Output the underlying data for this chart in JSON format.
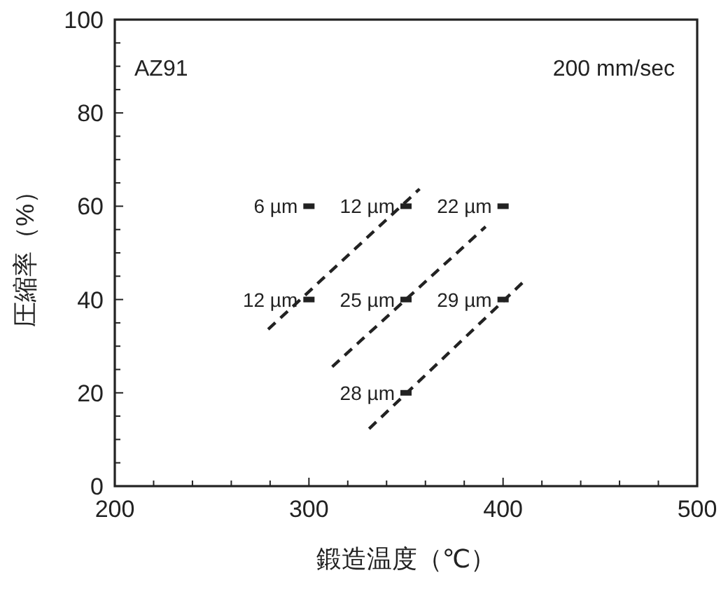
{
  "chart_data": {
    "type": "scatter",
    "xlabel": "鍛造温度（℃）",
    "ylabel": "圧縮率（%）",
    "xlim": [
      200,
      500
    ],
    "ylim": [
      0,
      100
    ],
    "xticks": [
      200,
      {
        "value": 220,
        "label": null
      },
      {
        "value": 240,
        "label": null
      },
      {
        "value": 260,
        "label": null
      },
      {
        "value": 280,
        "label": null
      },
      300,
      {
        "value": 320,
        "label": null
      },
      {
        "value": 340,
        "label": null
      },
      {
        "value": 360,
        "label": null
      },
      {
        "value": 380,
        "label": null
      },
      400,
      {
        "value": 420,
        "label": null
      },
      {
        "value": 440,
        "label": null
      },
      {
        "value": 460,
        "label": null
      },
      {
        "value": 480,
        "label": null
      },
      500
    ],
    "yticks": [
      0,
      {
        "value": 5,
        "label": null
      },
      {
        "value": 10,
        "label": null
      },
      {
        "value": 15,
        "label": null
      },
      20,
      {
        "value": 25,
        "label": null
      },
      {
        "value": 30,
        "label": null
      },
      {
        "value": 35,
        "label": null
      },
      40,
      {
        "value": 45,
        "label": null
      },
      {
        "value": 50,
        "label": null
      },
      {
        "value": 55,
        "label": null
      },
      60,
      {
        "value": 65,
        "label": null
      },
      {
        "value": 70,
        "label": null
      },
      {
        "value": 75,
        "label": null
      },
      80,
      {
        "value": 85,
        "label": null
      },
      {
        "value": 90,
        "label": null
      },
      {
        "value": 95,
        "label": null
      },
      100
    ],
    "grid": false,
    "series": [
      {
        "type": "line",
        "line_style": "dashed",
        "color": "#222222",
        "x": [
          279,
          357
        ],
        "values": [
          33.6,
          63.7
        ]
      },
      {
        "type": "line",
        "line_style": "dashed",
        "color": "#222222",
        "x": [
          312,
          391
        ],
        "values": [
          25.6,
          55.6
        ]
      },
      {
        "type": "line",
        "line_style": "dashed",
        "color": "#222222",
        "x": [
          331,
          410
        ],
        "values": [
          12.3,
          43.6
        ]
      },
      {
        "marker": "square",
        "color": "#222222",
        "x": [
          300,
          350,
          400,
          300,
          350,
          400,
          350
        ],
        "values": [
          60,
          60,
          60,
          40,
          40,
          40,
          20
        ]
      }
    ],
    "annotations": [
      "AZ91",
      "200 mm/sec",
      {
        "text": "6 µm",
        "x": 300,
        "y": 60
      },
      {
        "text": "12 µm",
        "x": 350,
        "y": 60
      },
      {
        "text": "22 µm",
        "x": 400,
        "y": 60
      },
      {
        "text": "12 µm",
        "x": 300,
        "y": 40
      },
      {
        "text": "25 µm",
        "x": 350,
        "y": 40
      },
      {
        "text": "29 µm",
        "x": 400,
        "y": 40
      },
      {
        "text": "28 µm",
        "x": 350,
        "y": 20
      }
    ]
  }
}
